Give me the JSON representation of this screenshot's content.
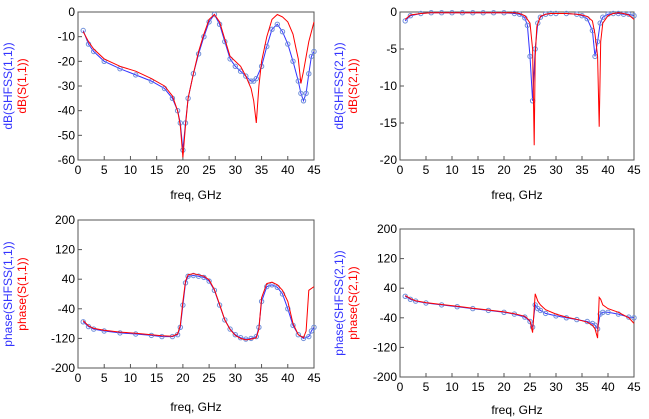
{
  "colors": {
    "blue": "#3333ff",
    "red": "#ff0000",
    "marker": "#6f8fd9"
  },
  "chart_data": [
    {
      "type": "line",
      "xlabel": "freq, GHz",
      "ylabels": [
        "dB(SHFSS(1,1))",
        "dB(S(1,1))"
      ],
      "xlim": [
        0,
        45
      ],
      "ylim": [
        -60,
        0
      ],
      "xticks": [
        0,
        5,
        10,
        15,
        20,
        25,
        30,
        35,
        40,
        45
      ],
      "yticks": [
        0,
        -10,
        -20,
        -30,
        -40,
        -50,
        -60
      ],
      "series": [
        {
          "name": "dB(SHFSS(1,1))",
          "color": "blue",
          "markers": true,
          "x": [
            1,
            2,
            3,
            5,
            8,
            11,
            14,
            16.5,
            18,
            19,
            19.5,
            20,
            20.5,
            21,
            22,
            23,
            24,
            25,
            26,
            27,
            28,
            29,
            30,
            31,
            32,
            33,
            33.5,
            34,
            35,
            36,
            37,
            38,
            39,
            40,
            41,
            42,
            42.5,
            43,
            43.5,
            44,
            44.5,
            45
          ],
          "y": [
            -7.5,
            -13,
            -16,
            -20,
            -23,
            -25.5,
            -28,
            -31,
            -35,
            -40,
            -45,
            -56,
            -45,
            -35,
            -25,
            -17,
            -10,
            -4,
            -1,
            -5,
            -12,
            -19,
            -22,
            -24,
            -26,
            -28,
            -28,
            -27,
            -22,
            -14,
            -7,
            -5,
            -8,
            -13,
            -20,
            -28,
            -33,
            -36,
            -33,
            -25,
            -18,
            -16
          ]
        },
        {
          "name": "dB(S(1,1))",
          "color": "red",
          "markers": false,
          "x": [
            1,
            2,
            3,
            5,
            8,
            11,
            14,
            16.5,
            18,
            19,
            19.5,
            20,
            20.5,
            21,
            22,
            23,
            24,
            25,
            26,
            27,
            28,
            29,
            30,
            31,
            32,
            33,
            33.5,
            34,
            34.5,
            35,
            36,
            37,
            38,
            39,
            40,
            41,
            41.5,
            42,
            42.5,
            43,
            44,
            45
          ],
          "y": [
            -8,
            -12,
            -15,
            -19,
            -22,
            -24,
            -27,
            -30,
            -34,
            -40,
            -46,
            -59,
            -46,
            -35,
            -25,
            -16,
            -9,
            -3,
            -1,
            -4,
            -11,
            -18,
            -20,
            -22,
            -26,
            -31,
            -36,
            -45,
            -30,
            -20,
            -10,
            -3,
            -1,
            -2,
            -4,
            -9,
            -14,
            -19,
            -29,
            -24,
            -12,
            -4
          ]
        }
      ]
    },
    {
      "type": "line",
      "xlabel": "freq, GHz",
      "ylabels": [
        "dB(SHFSS(2,1))",
        "dB(S(2,1))"
      ],
      "xlim": [
        0,
        45
      ],
      "ylim": [
        -20,
        0
      ],
      "xticks": [
        0,
        5,
        10,
        15,
        20,
        25,
        30,
        35,
        40,
        45
      ],
      "yticks": [
        0,
        -5,
        -10,
        -15,
        -20
      ],
      "series": [
        {
          "name": "dB(SHFSS(2,1))",
          "color": "blue",
          "markers": true,
          "x": [
            1,
            2,
            4,
            6,
            8,
            10,
            12,
            14,
            16,
            18,
            20,
            22,
            23,
            24,
            24.5,
            25,
            25.5,
            26,
            26.5,
            27,
            28,
            29,
            30,
            32,
            34,
            35,
            36,
            37,
            37.5,
            38,
            38.5,
            39,
            40,
            41,
            42,
            43,
            44,
            45
          ],
          "y": [
            -1.2,
            -0.5,
            -0.2,
            -0.1,
            -0.1,
            -0.1,
            -0.1,
            -0.1,
            -0.1,
            -0.1,
            -0.1,
            -0.2,
            -0.3,
            -0.8,
            -1.8,
            -6,
            -12,
            -5,
            -1.5,
            -0.7,
            -0.3,
            -0.2,
            -0.2,
            -0.2,
            -0.3,
            -0.5,
            -0.9,
            -2.5,
            -6,
            -4,
            -1.5,
            -0.7,
            -0.3,
            -0.2,
            -0.2,
            -0.3,
            -0.3,
            -0.5
          ]
        },
        {
          "name": "dB(S(2,1))",
          "color": "red",
          "markers": false,
          "x": [
            1,
            2,
            4,
            6,
            10,
            14,
            18,
            22,
            23,
            24,
            25,
            25.5,
            25.8,
            26,
            26.3,
            27,
            28,
            29,
            30,
            32,
            34,
            35,
            36,
            37,
            37.5,
            38,
            38.3,
            38.6,
            39,
            40,
            41,
            42,
            43,
            44,
            45
          ],
          "y": [
            -1,
            -0.4,
            -0.2,
            -0.1,
            -0.1,
            -0.1,
            -0.1,
            -0.1,
            -0.2,
            -0.5,
            -1.5,
            -5,
            -18,
            -6,
            -2,
            -0.6,
            -0.3,
            -0.2,
            -0.2,
            -0.2,
            -0.3,
            -0.4,
            -0.6,
            -1.2,
            -3,
            -6,
            -15.5,
            -4,
            -1.5,
            -0.5,
            -0.2,
            -0.1,
            -0.2,
            -0.4,
            -1
          ]
        }
      ]
    },
    {
      "type": "line",
      "xlabel": "freq, GHz",
      "ylabels": [
        "phase(SHFSS(1,1))",
        "phase(S(1,1))"
      ],
      "xlim": [
        0,
        45
      ],
      "ylim": [
        -200,
        200
      ],
      "xticks": [
        0,
        5,
        10,
        15,
        20,
        25,
        30,
        35,
        40,
        45
      ],
      "yticks": [
        200,
        120,
        40,
        -40,
        -120,
        -200
      ],
      "series": [
        {
          "name": "phase(SHFSS(1,1))",
          "color": "blue",
          "markers": true,
          "x": [
            1,
            2,
            3,
            5,
            8,
            11,
            14,
            16,
            18,
            19,
            19.5,
            20,
            20.5,
            21,
            22,
            23,
            24,
            25,
            26,
            27,
            28,
            29,
            30,
            31,
            32,
            33,
            34,
            34.5,
            35,
            36,
            37,
            38,
            39,
            40,
            41,
            42,
            43,
            44,
            44.5,
            45
          ],
          "y": [
            -75,
            -88,
            -95,
            -100,
            -105,
            -108,
            -112,
            -115,
            -115,
            -110,
            -90,
            -30,
            30,
            48,
            50,
            48,
            45,
            35,
            10,
            -30,
            -70,
            -95,
            -110,
            -118,
            -122,
            -120,
            -115,
            -90,
            -20,
            20,
            25,
            18,
            0,
            -40,
            -85,
            -110,
            -120,
            -115,
            -100,
            -90
          ]
        },
        {
          "name": "phase(S(1,1))",
          "color": "red",
          "markers": false,
          "x": [
            1,
            2,
            3,
            5,
            8,
            11,
            14,
            16,
            18,
            19,
            19.5,
            20,
            20.5,
            21,
            22,
            23,
            24,
            25,
            26,
            27,
            28,
            29,
            30,
            31,
            32,
            33,
            34,
            34.5,
            35,
            36,
            37,
            38,
            39,
            40,
            40.5,
            41,
            42,
            43,
            43.5,
            44,
            45
          ],
          "y": [
            -72,
            -86,
            -93,
            -98,
            -103,
            -106,
            -110,
            -113,
            -114,
            -108,
            -85,
            -20,
            35,
            52,
            55,
            52,
            48,
            38,
            12,
            -28,
            -70,
            -96,
            -112,
            -120,
            -124,
            -122,
            -118,
            -95,
            -10,
            28,
            32,
            25,
            10,
            -20,
            -50,
            -80,
            -110,
            -118,
            -100,
            10,
            20
          ]
        }
      ]
    },
    {
      "type": "line",
      "xlabel": "freq, GHz",
      "ylabels": [
        "phase(SHFSS(2,1))",
        "phase(S(2,1))"
      ],
      "xlim": [
        0,
        45
      ],
      "ylim": [
        -200,
        200
      ],
      "xticks": [
        0,
        5,
        10,
        15,
        20,
        25,
        30,
        35,
        40,
        45
      ],
      "yticks": [
        200,
        120,
        40,
        -40,
        -120,
        -200
      ],
      "series": [
        {
          "name": "phase(SHFSS(2,1))",
          "color": "blue",
          "markers": true,
          "x": [
            1,
            2,
            3,
            5,
            8,
            11,
            14,
            17,
            20,
            22,
            24,
            25,
            25.5,
            26,
            26.5,
            27,
            28,
            30,
            32,
            34,
            36,
            37,
            37.5,
            38,
            38.5,
            39,
            40,
            42,
            44,
            45
          ],
          "y": [
            18,
            10,
            5,
            0,
            -5,
            -10,
            -15,
            -20,
            -25,
            -30,
            -38,
            -50,
            -65,
            -5,
            -15,
            -20,
            -28,
            -35,
            -40,
            -45,
            -50,
            -55,
            -60,
            -70,
            -30,
            -25,
            -25,
            -30,
            -38,
            -40
          ]
        },
        {
          "name": "phase(S(2,1))",
          "color": "red",
          "markers": false,
          "x": [
            1,
            2,
            3,
            5,
            8,
            11,
            14,
            17,
            20,
            22,
            24,
            25,
            25.5,
            26,
            26.5,
            27,
            28,
            30,
            32,
            34,
            36,
            37,
            37.5,
            38,
            38.3,
            38.6,
            39,
            40,
            42,
            44,
            45
          ],
          "y": [
            20,
            12,
            6,
            1,
            -4,
            -9,
            -14,
            -19,
            -24,
            -29,
            -36,
            -48,
            -80,
            25,
            5,
            -5,
            -18,
            -30,
            -38,
            -44,
            -52,
            -60,
            -70,
            -95,
            15,
            10,
            -5,
            -15,
            -25,
            -40,
            -55
          ]
        }
      ]
    }
  ]
}
